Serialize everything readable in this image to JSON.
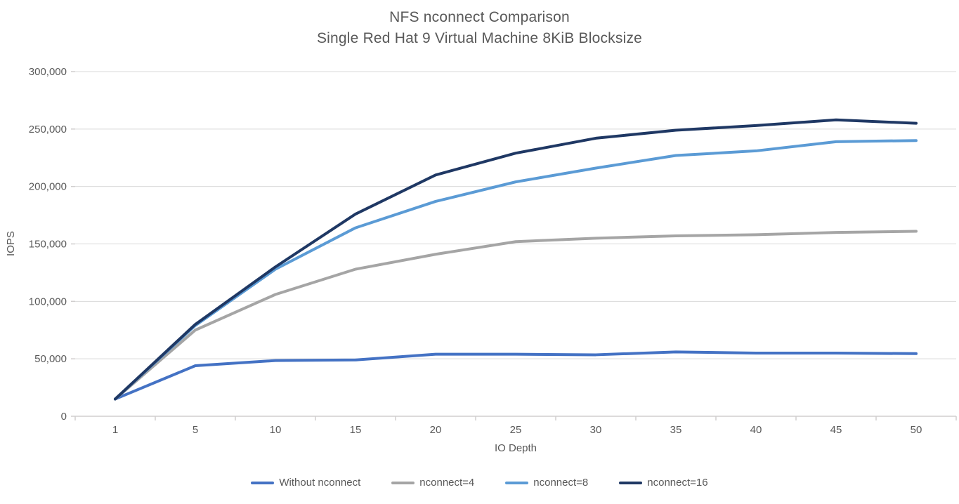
{
  "title": {
    "line1": "NFS nconnect Comparison",
    "line2": "Single Red Hat 9 Virtual Machine 8KiB Blocksize"
  },
  "chart_data": {
    "type": "line",
    "title": "NFS nconnect Comparison — Single Red Hat 9 Virtual Machine 8KiB Blocksize",
    "x": [
      1,
      5,
      10,
      15,
      20,
      25,
      30,
      35,
      40,
      45,
      50
    ],
    "xlabel": "IO Depth",
    "ylabel": "IOPS",
    "ylim": [
      0,
      300000
    ],
    "yticks": [
      0,
      50000,
      100000,
      150000,
      200000,
      250000,
      300000
    ],
    "grid": true,
    "legend_position": "bottom",
    "series": [
      {
        "name": "Without nconnect",
        "color": "#4472C4",
        "values": [
          15000,
          44000,
          48500,
          49000,
          54000,
          54000,
          53500,
          56000,
          55000,
          55000,
          54500
        ]
      },
      {
        "name": "nconnect=4",
        "color": "#A5A5A5",
        "values": [
          15000,
          75000,
          106000,
          128000,
          141000,
          152000,
          155000,
          157000,
          158000,
          160000,
          161000
        ]
      },
      {
        "name": "nconnect=8",
        "color": "#5B9BD5",
        "values": [
          15000,
          79000,
          128000,
          164000,
          187000,
          204000,
          216000,
          227000,
          231000,
          239000,
          240000
        ]
      },
      {
        "name": "nconnect=16",
        "color": "#1F3864",
        "values": [
          15000,
          80000,
          130000,
          176000,
          210000,
          229000,
          242000,
          249000,
          253000,
          258000,
          255000
        ]
      }
    ]
  },
  "style": {
    "gridline_color": "#D9D9D9",
    "axis_color": "#D0CECE",
    "tick_label_color": "#595959"
  }
}
